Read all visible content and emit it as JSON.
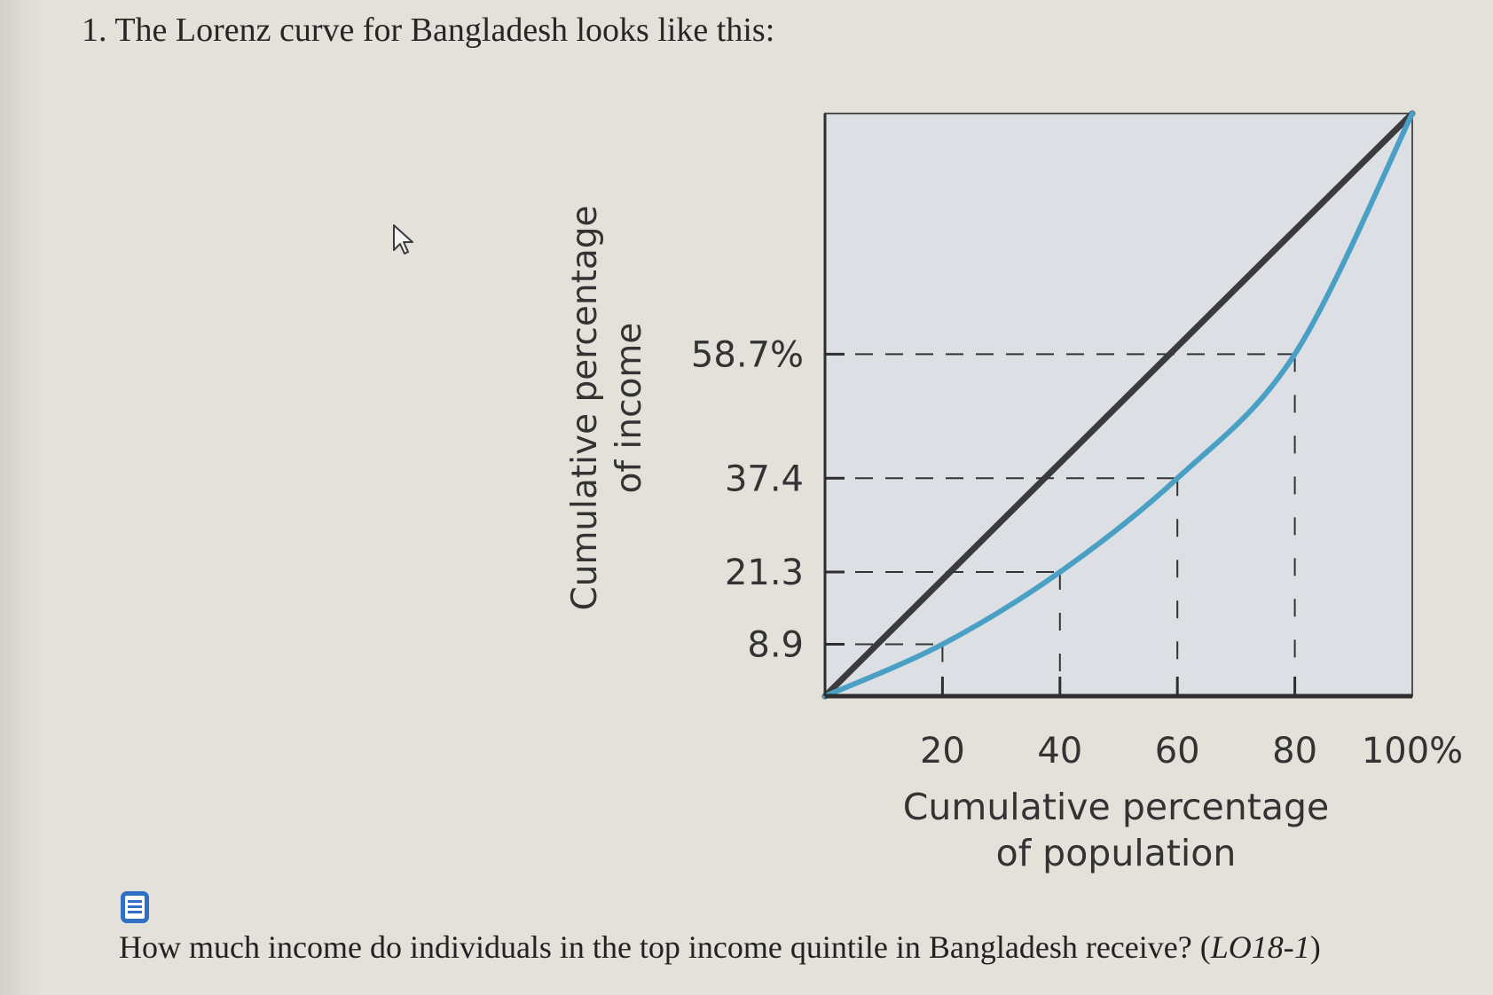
{
  "question": {
    "title": "1. The Lorenz curve for Bangladesh looks like this:",
    "text_main": "How much income do individuals in the top income quintile in Bangladesh receive? (",
    "text_lo": "LO18-1",
    "text_close": ")"
  },
  "icons": {
    "note": "note-list-icon",
    "cursor": "mouse-pointer-icon"
  },
  "colors": {
    "lorenz_curve": "#4aa0c4",
    "equality_line": "#3b3b3d",
    "plot_background": "#dcdfe4"
  },
  "chart_data": {
    "type": "line",
    "xlabel": [
      "Cumulative percentage",
      "of population"
    ],
    "ylabel": [
      "Cumulative percentage",
      "of income"
    ],
    "xlim": [
      0,
      100
    ],
    "ylim": [
      0,
      100
    ],
    "x_ticks": [
      20,
      40,
      60,
      80,
      100
    ],
    "x_tick_labels": [
      "20",
      "40",
      "60",
      "80",
      "100%"
    ],
    "y_ticks": [
      8.9,
      21.3,
      37.4,
      58.7
    ],
    "y_tick_labels": [
      "8.9",
      "21.3",
      "37.4",
      "58.7%"
    ],
    "series": [
      {
        "x": [
          0,
          20,
          40,
          60,
          80,
          100
        ],
        "y": [
          0,
          8.9,
          21.3,
          37.4,
          58.7,
          100
        ]
      },
      {
        "x": [
          0,
          100
        ],
        "y": [
          0,
          100
        ]
      }
    ],
    "grid": false
  }
}
